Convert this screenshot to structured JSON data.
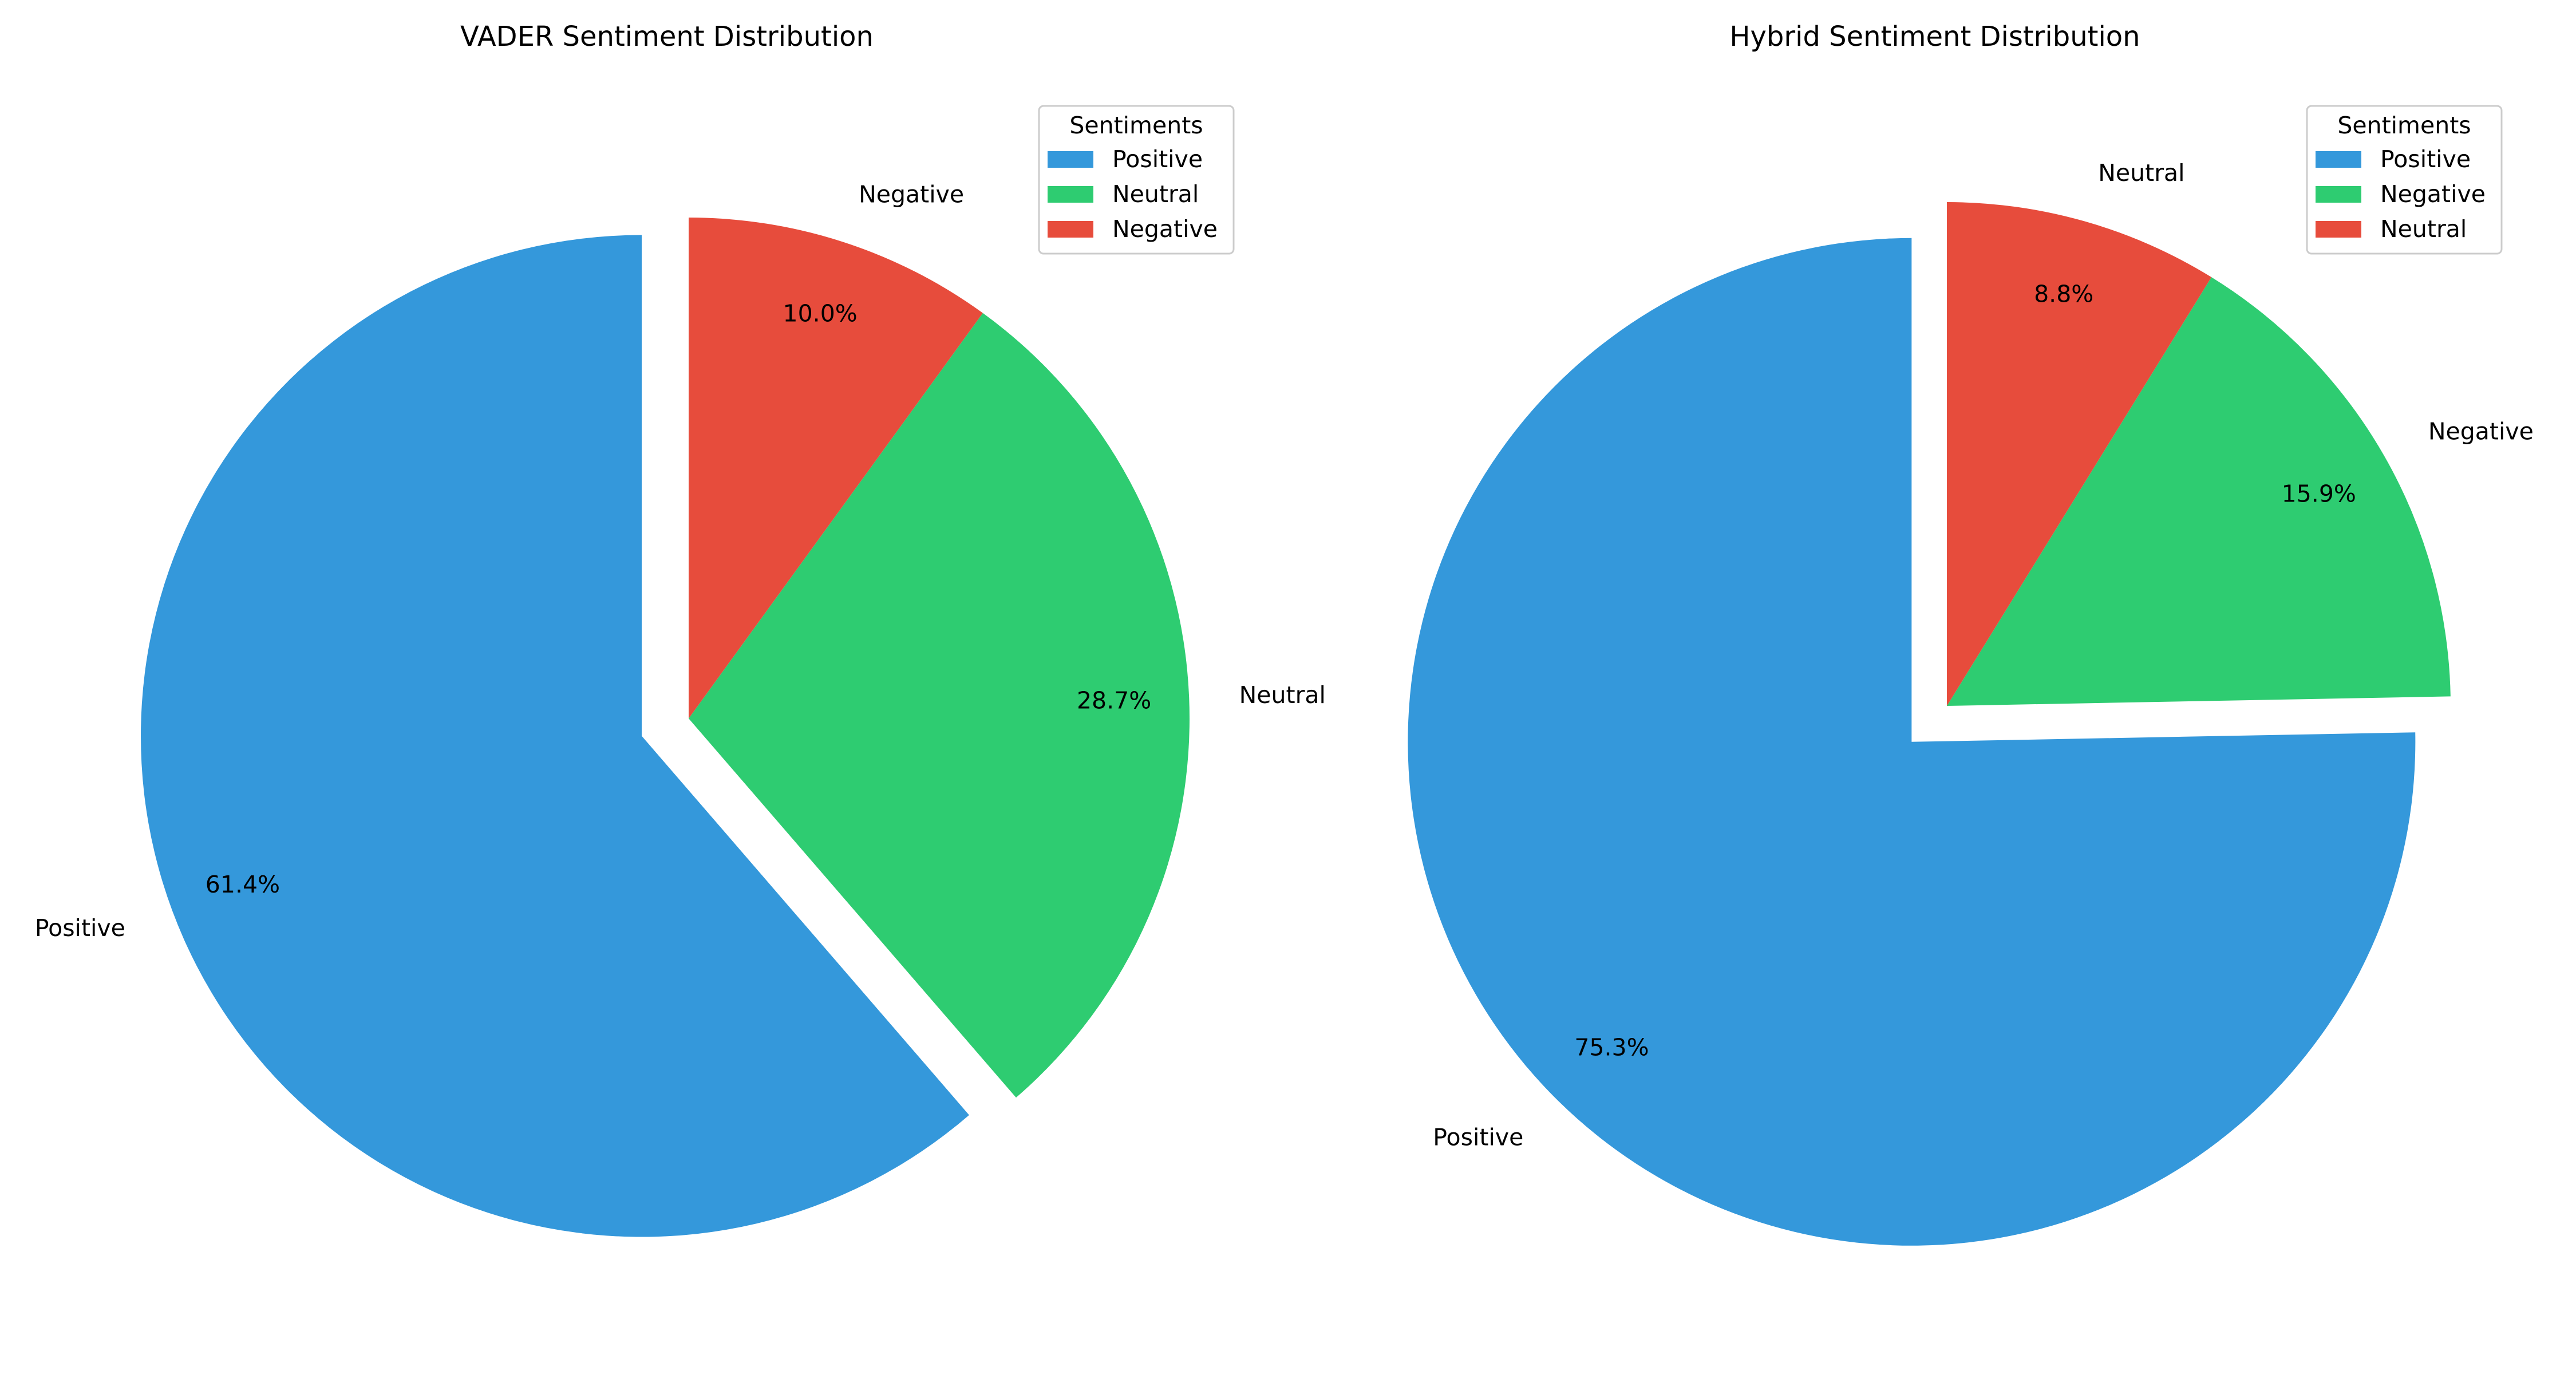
{
  "chart_data": [
    {
      "type": "pie",
      "title": "VADER Sentiment Distribution",
      "labels": [
        "Positive",
        "Neutral",
        "Negative"
      ],
      "values": [
        61.4,
        28.7,
        10.0
      ],
      "value_labels": [
        "61.4%",
        "28.7%",
        "10.0%"
      ],
      "colors": [
        "#3498db",
        "#2ecc71",
        "#e74c3c"
      ],
      "exploded": "Positive",
      "start": "top, counterclockwise",
      "legend": {
        "title": "Sentiments",
        "entries": [
          "Positive",
          "Neutral",
          "Negative"
        ],
        "placement": "top-right"
      }
    },
    {
      "type": "pie",
      "title": "Hybrid Sentiment Distribution",
      "labels": [
        "Positive",
        "Negative",
        "Neutral"
      ],
      "values": [
        75.3,
        15.9,
        8.8
      ],
      "value_labels": [
        "75.3%",
        "15.9%",
        "8.8%"
      ],
      "colors": [
        "#3498db",
        "#2ecc71",
        "#e74c3c"
      ],
      "exploded": "Positive",
      "start": "top, counterclockwise",
      "legend": {
        "title": "Sentiments",
        "entries": [
          "Positive",
          "Negative",
          "Neutral"
        ],
        "placement": "top-right"
      }
    }
  ]
}
